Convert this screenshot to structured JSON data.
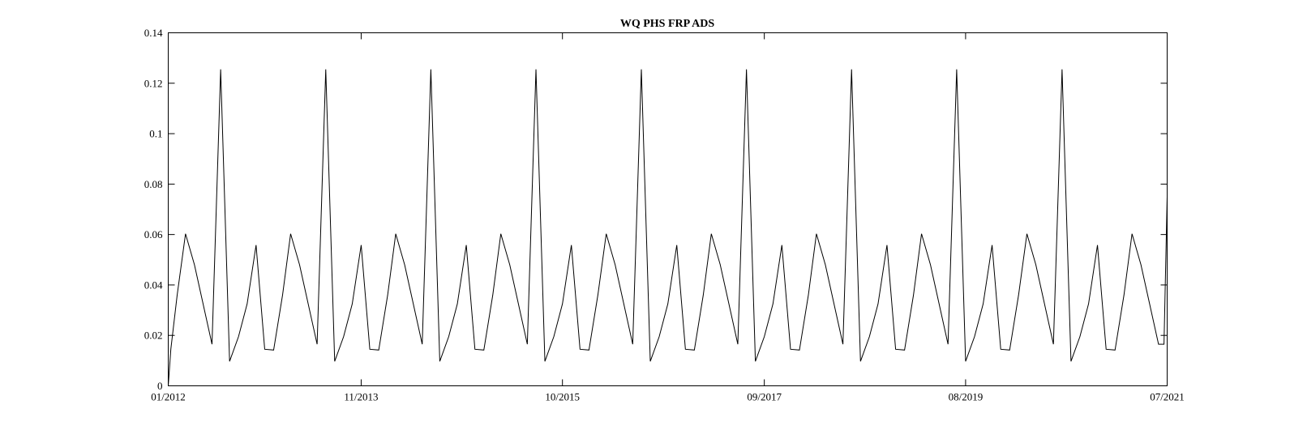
{
  "chart_data": {
    "type": "line",
    "title": "WQ PHS FRP ADS",
    "xlabel": "",
    "ylabel": "",
    "x_range": [
      "2012-01",
      "2021-07"
    ],
    "ylim": [
      0,
      0.14
    ],
    "x_tick_labels": [
      "01/2012",
      "11/2013",
      "10/2015",
      "09/2017",
      "08/2019",
      "07/2021"
    ],
    "x_tick_dates": [
      "2012-01",
      "2013-11",
      "2015-10",
      "2017-09",
      "2019-08",
      "2021-07"
    ],
    "y_ticks": [
      0,
      0.02,
      0.04,
      0.06,
      0.08,
      0.1,
      0.12,
      0.14
    ],
    "y_tick_labels": [
      "0",
      "0.02",
      "0.04",
      "0.06",
      "0.08",
      "0.1",
      "0.12",
      "0.14"
    ],
    "grid": false,
    "line_color": "#000000",
    "series": [
      {
        "x": [
          "2012-01-01",
          "2012-01-10",
          "2012-02",
          "2012-03",
          "2012-04",
          "2012-05",
          "2012-06",
          "2012-07",
          "2012-08",
          "2012-09",
          "2012-10",
          "2012-11",
          "2012-12",
          "2013-01",
          "2013-02",
          "2013-03",
          "2013-04",
          "2013-05",
          "2013-06",
          "2013-07",
          "2013-08",
          "2013-09",
          "2013-10",
          "2013-11",
          "2013-12",
          "2014-01",
          "2014-02",
          "2014-03",
          "2014-04",
          "2014-05",
          "2014-06",
          "2014-07",
          "2014-08",
          "2014-09",
          "2014-10",
          "2014-11",
          "2014-12",
          "2015-01",
          "2015-02",
          "2015-03",
          "2015-04",
          "2015-05",
          "2015-06",
          "2015-07",
          "2015-08",
          "2015-09",
          "2015-10",
          "2015-11",
          "2015-12",
          "2016-01",
          "2016-02",
          "2016-03",
          "2016-04",
          "2016-05",
          "2016-06",
          "2016-07",
          "2016-08",
          "2016-09",
          "2016-10",
          "2016-11",
          "2016-12",
          "2017-01",
          "2017-02",
          "2017-03",
          "2017-04",
          "2017-05",
          "2017-06",
          "2017-07",
          "2017-08",
          "2017-09",
          "2017-10",
          "2017-11",
          "2017-12",
          "2018-01",
          "2018-02",
          "2018-03",
          "2018-04",
          "2018-05",
          "2018-06",
          "2018-07",
          "2018-08",
          "2018-09",
          "2018-10",
          "2018-11",
          "2018-12",
          "2019-01",
          "2019-02",
          "2019-03",
          "2019-04",
          "2019-05",
          "2019-06",
          "2019-07",
          "2019-08",
          "2019-09",
          "2019-10",
          "2019-11",
          "2019-12",
          "2020-01",
          "2020-02",
          "2020-03",
          "2020-04",
          "2020-05",
          "2020-06",
          "2020-07",
          "2020-08",
          "2020-09",
          "2020-10",
          "2020-11",
          "2020-12",
          "2021-01",
          "2021-02",
          "2021-03",
          "2021-04",
          "2021-05",
          "2021-06",
          "2021-06-20",
          "2021-07"
        ],
        "values": [
          0,
          0.0145,
          0.036,
          0.0603,
          0.048,
          0.0325,
          0.0165,
          0.1255,
          0.0097,
          0.0195,
          0.0325,
          0.0558,
          0.0145,
          0.0142,
          0.036,
          0.0603,
          0.048,
          0.0325,
          0.0165,
          0.1255,
          0.0097,
          0.0195,
          0.0325,
          0.0558,
          0.0145,
          0.0142,
          0.036,
          0.0603,
          0.048,
          0.0325,
          0.0165,
          0.1255,
          0.0097,
          0.0195,
          0.0325,
          0.0558,
          0.0145,
          0.0142,
          0.036,
          0.0603,
          0.048,
          0.0325,
          0.0165,
          0.1255,
          0.0097,
          0.0195,
          0.0325,
          0.0558,
          0.0145,
          0.0142,
          0.036,
          0.0603,
          0.048,
          0.0325,
          0.0165,
          0.1255,
          0.0097,
          0.0195,
          0.0325,
          0.0558,
          0.0145,
          0.0142,
          0.036,
          0.0603,
          0.048,
          0.0325,
          0.0165,
          0.1255,
          0.0097,
          0.0195,
          0.0325,
          0.0558,
          0.0145,
          0.0142,
          0.036,
          0.0603,
          0.048,
          0.0325,
          0.0165,
          0.1255,
          0.0097,
          0.0195,
          0.0325,
          0.0558,
          0.0145,
          0.0142,
          0.036,
          0.0603,
          0.048,
          0.0325,
          0.0165,
          0.1255,
          0.0097,
          0.0195,
          0.0325,
          0.0558,
          0.0145,
          0.0142,
          0.036,
          0.0603,
          0.048,
          0.0325,
          0.0165,
          0.1255,
          0.0097,
          0.0195,
          0.0325,
          0.0558,
          0.0145,
          0.0142,
          0.036,
          0.0603,
          0.048,
          0.0325,
          0.0165,
          0.0165,
          0.075
        ]
      }
    ]
  }
}
